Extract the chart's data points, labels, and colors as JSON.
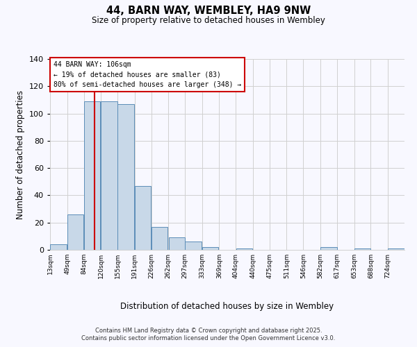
{
  "title": "44, BARN WAY, WEMBLEY, HA9 9NW",
  "subtitle": "Size of property relative to detached houses in Wembley",
  "xlabel": "Distribution of detached houses by size in Wembley",
  "ylabel": "Number of detached properties",
  "bar_edges": [
    13,
    49,
    84,
    120,
    155,
    191,
    226,
    262,
    297,
    333,
    369,
    404,
    440,
    475,
    511,
    546,
    582,
    617,
    653,
    688,
    724
  ],
  "bar_heights": [
    4,
    26,
    109,
    109,
    107,
    47,
    17,
    9,
    6,
    2,
    0,
    1,
    0,
    0,
    0,
    0,
    2,
    0,
    1,
    0,
    1
  ],
  "bar_color": "#c8d8e8",
  "bar_edgecolor": "#5b8db8",
  "property_line_x": 106,
  "property_line_color": "#cc0000",
  "annotation_line1": "44 BARN WAY: 106sqm",
  "annotation_line2": "← 19% of detached houses are smaller (83)",
  "annotation_line3": "80% of semi-detached houses are larger (348) →",
  "ylim": [
    0,
    140
  ],
  "yticks": [
    0,
    20,
    40,
    60,
    80,
    100,
    120,
    140
  ],
  "tick_labels": [
    "13sqm",
    "49sqm",
    "84sqm",
    "120sqm",
    "155sqm",
    "191sqm",
    "226sqm",
    "262sqm",
    "297sqm",
    "333sqm",
    "369sqm",
    "404sqm",
    "440sqm",
    "475sqm",
    "511sqm",
    "546sqm",
    "582sqm",
    "617sqm",
    "653sqm",
    "688sqm",
    "724sqm"
  ],
  "footer_line1": "Contains HM Land Registry data © Crown copyright and database right 2025.",
  "footer_line2": "Contains public sector information licensed under the Open Government Licence v3.0.",
  "background_color": "#f8f8ff",
  "grid_color": "#d0d0d0"
}
